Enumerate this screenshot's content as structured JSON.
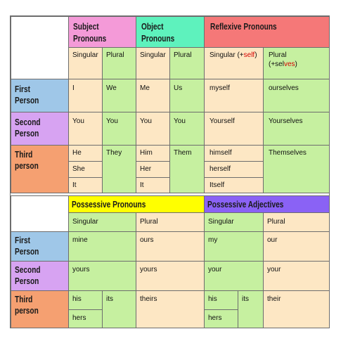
{
  "top_table": {
    "headers": {
      "subject": [
        "Subject",
        "Pronouns"
      ],
      "object": [
        "Object",
        "Pronouns"
      ],
      "reflexive": "Reflexive Pronouns"
    },
    "subheaders": {
      "subject_singular": "Singular",
      "subject_plural": "Plural",
      "object_singular": "Singular",
      "object_plural": "Plural",
      "reflexive_singular_prefix": "Singular  (+",
      "reflexive_singular_suffix": "self",
      "reflexive_singular_close": ")",
      "reflexive_plural_line1": "Plural",
      "reflexive_plural_prefix": "(+sel",
      "reflexive_plural_suffix": "ves",
      "reflexive_plural_close": ")"
    },
    "rows": {
      "first": {
        "label": [
          "First",
          "Person"
        ],
        "subject_singular": "I",
        "subject_plural": "We",
        "object_singular": "Me",
        "object_plural": "Us",
        "reflexive_singular": "myself",
        "reflexive_plural": "ourselves"
      },
      "second": {
        "label": [
          "Second",
          "Person"
        ],
        "subject_singular": "You",
        "subject_plural": "You",
        "object_singular": "You",
        "object_plural": "You",
        "reflexive_singular": "Yourself",
        "reflexive_plural": "Yourselves"
      },
      "third": {
        "label": [
          "Third",
          "person"
        ],
        "subject_singular": [
          "He",
          "She",
          "It"
        ],
        "subject_plural": "They",
        "object_singular": [
          "Him",
          "Her",
          "It"
        ],
        "object_plural": "Them",
        "reflexive_singular": [
          "himself",
          "herself",
          "Itself"
        ],
        "reflexive_plural": "Themselves"
      }
    }
  },
  "bottom_table": {
    "headers": {
      "possessive_pronouns": "Possessive Pronouns",
      "possessive_adjectives": "Possessive Adjectives"
    },
    "subheaders": {
      "pp_singular": "Singular",
      "pp_plural": "Plural",
      "pa_singular": "Singular",
      "pa_plural": "Plural"
    },
    "rows": {
      "first": {
        "label": [
          "First",
          "Person"
        ],
        "pp_singular": "mine",
        "pp_plural": "ours",
        "pa_singular": "my",
        "pa_plural": "our"
      },
      "second": {
        "label": [
          "Second",
          "Person"
        ],
        "pp_singular": "yours",
        "pp_plural": "yours",
        "pa_singular": "your",
        "pa_plural": "your"
      },
      "third": {
        "label": [
          "Third",
          "person"
        ],
        "pp_singular": [
          "his",
          "hers"
        ],
        "pp_singular_neuter": "its",
        "pp_plural": "theirs",
        "pa_singular": [
          "his",
          "hers"
        ],
        "pa_singular_neuter": "its",
        "pa_plural": "their"
      }
    }
  },
  "colors": {
    "subject_header": "#f49ad8",
    "object_header": "#5ef2bd",
    "reflexive_header": "#f57878",
    "possessive_pronouns_header": "#ffff00",
    "possessive_adjectives_header": "#8a62f5",
    "first_person": "#9fc7e8",
    "second_person": "#d7a3f2",
    "third_person": "#f5a071",
    "cell_green": "#c6f0a0",
    "cell_pale": "#fde7c4"
  }
}
